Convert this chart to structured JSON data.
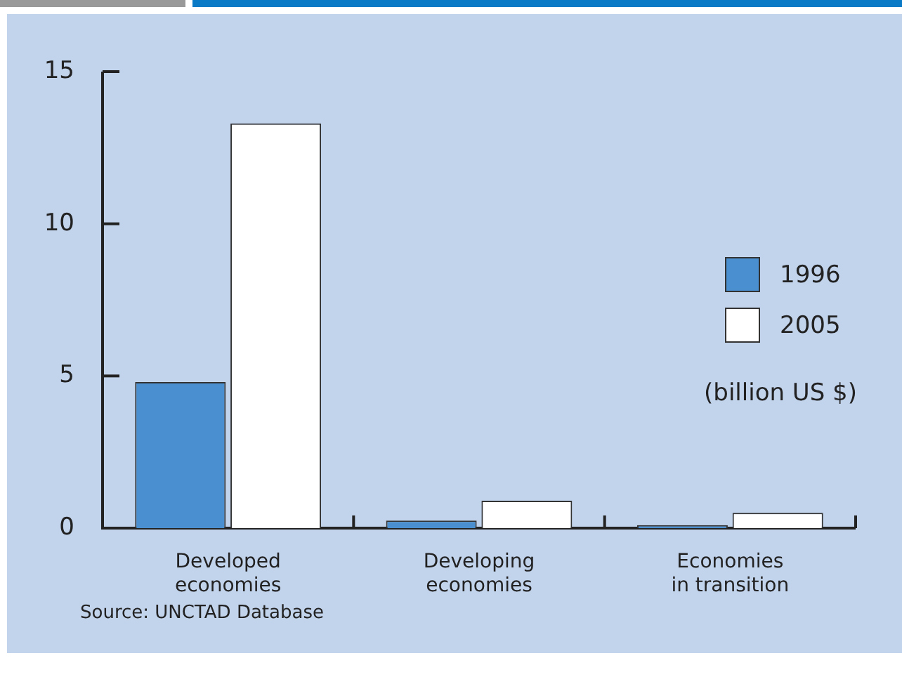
{
  "chart_data": {
    "type": "bar",
    "categories": [
      "Developed\neconomies",
      "Developing\neconomies",
      "Economies\nin transition"
    ],
    "series": [
      {
        "name": "1996",
        "color": "#4a8fcf",
        "values": [
          4.8,
          0.25,
          0.1
        ]
      },
      {
        "name": "2005",
        "color": "#ffffff",
        "values": [
          13.3,
          0.9,
          0.5
        ]
      }
    ],
    "ylim": [
      0,
      15
    ],
    "yticks": [
      0,
      5,
      10,
      15
    ],
    "grid": false,
    "legend": "right",
    "annotations": [
      "(billion US $)",
      "Source:  UNCTAD Database"
    ]
  }
}
